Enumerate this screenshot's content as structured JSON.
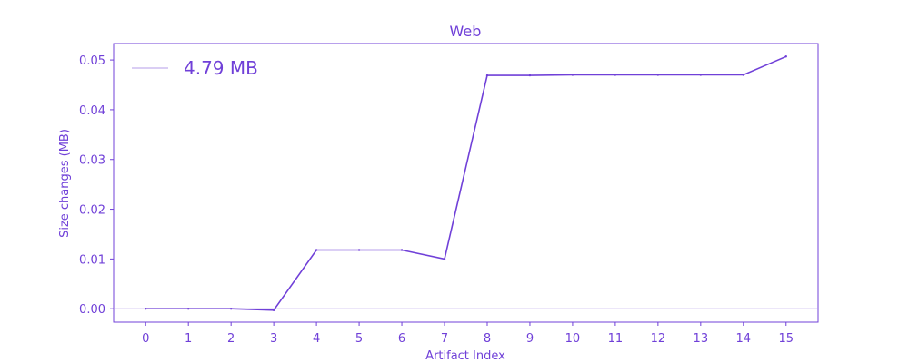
{
  "chart_data": {
    "type": "line",
    "title": "Web",
    "xlabel": "Artifact Index",
    "ylabel": "Size changes (MB)",
    "x": [
      0,
      1,
      2,
      3,
      4,
      5,
      6,
      7,
      8,
      9,
      10,
      11,
      12,
      13,
      14,
      15
    ],
    "series": [
      {
        "name": "4.79 MB",
        "values": [
          0.0,
          0.0,
          0.0,
          -0.0003,
          0.0118,
          0.0118,
          0.0118,
          0.01,
          0.0469,
          0.0469,
          0.047,
          0.047,
          0.047,
          0.047,
          0.047,
          0.0507
        ]
      }
    ],
    "xlim": [
      -0.75,
      15.75
    ],
    "ylim": [
      -0.0027,
      0.0533
    ],
    "xticks": [
      "0",
      "1",
      "2",
      "3",
      "4",
      "5",
      "6",
      "7",
      "8",
      "9",
      "10",
      "11",
      "12",
      "13",
      "14",
      "15"
    ],
    "yticks": [
      "0.00",
      "0.01",
      "0.02",
      "0.03",
      "0.04",
      "0.05"
    ],
    "ytick_values": [
      0.0,
      0.01,
      0.02,
      0.03,
      0.04,
      0.05
    ],
    "zero_line": true,
    "grid": false,
    "legend_position": "top-left",
    "colors": {
      "line": "#7040d8",
      "text": "#7040d8",
      "zero_line": "#b49ce8",
      "axis": "#7040d8"
    }
  }
}
